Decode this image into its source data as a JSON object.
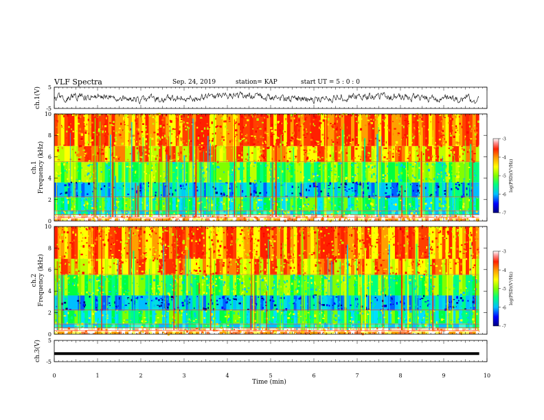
{
  "header": {
    "title": "VLF Spectra",
    "date": "Sep. 24, 2019",
    "station": "station= KAP",
    "start_ut": "start  UT =   5 : 0  : 0"
  },
  "chart_data": [
    {
      "type": "line",
      "ylabel": "ch.1(V)",
      "ylim": [
        -5,
        5
      ],
      "yticks": [
        "5",
        "-5"
      ],
      "xlim": [
        0,
        10
      ],
      "description": "noisy waveform ch.1, mostly between -1.5 and 1.5 V"
    },
    {
      "type": "heatmap",
      "ylabel": "Frequency (kHz)",
      "channel_label": "ch.1",
      "ylim": [
        0,
        10
      ],
      "yticks": [
        "0",
        "2",
        "4",
        "6",
        "8",
        "10"
      ],
      "xlim": [
        0,
        10
      ],
      "colorbar": {
        "label": "log(PSD)(V²/Hz)",
        "range": [
          -7,
          -3
        ],
        "ticks": [
          "-3",
          "-4",
          "-5",
          "-6",
          "-7"
        ]
      }
    },
    {
      "type": "heatmap",
      "ylabel": "Frequency (kHz)",
      "channel_label": "ch.2",
      "ylim": [
        0,
        10
      ],
      "yticks": [
        "0",
        "2",
        "4",
        "6",
        "8",
        "10"
      ],
      "xlim": [
        0,
        10
      ],
      "colorbar": {
        "label": "log(PSD)(V²/Hz)",
        "range": [
          -7,
          -3
        ],
        "ticks": [
          "-3",
          "-4",
          "-5",
          "-6",
          "-7"
        ]
      }
    },
    {
      "type": "line",
      "ylabel": "ch.3(V)",
      "ylim": [
        -5,
        5
      ],
      "yticks": [
        "5",
        "-5"
      ],
      "xlim": [
        0,
        10
      ],
      "xlabel": "Time (min)",
      "xticks": [
        "0",
        "1",
        "2",
        "3",
        "4",
        "5",
        "6",
        "7",
        "8",
        "9",
        "10"
      ],
      "description": "constant flat line ch.3 at about -1.2 V"
    }
  ],
  "colors": {
    "colormap": [
      "#000080",
      "#0000ff",
      "#00bfff",
      "#00ff80",
      "#b0ff30",
      "#ffff00",
      "#ffa000",
      "#ff2000",
      "#ff8080",
      "#ffffff"
    ]
  }
}
